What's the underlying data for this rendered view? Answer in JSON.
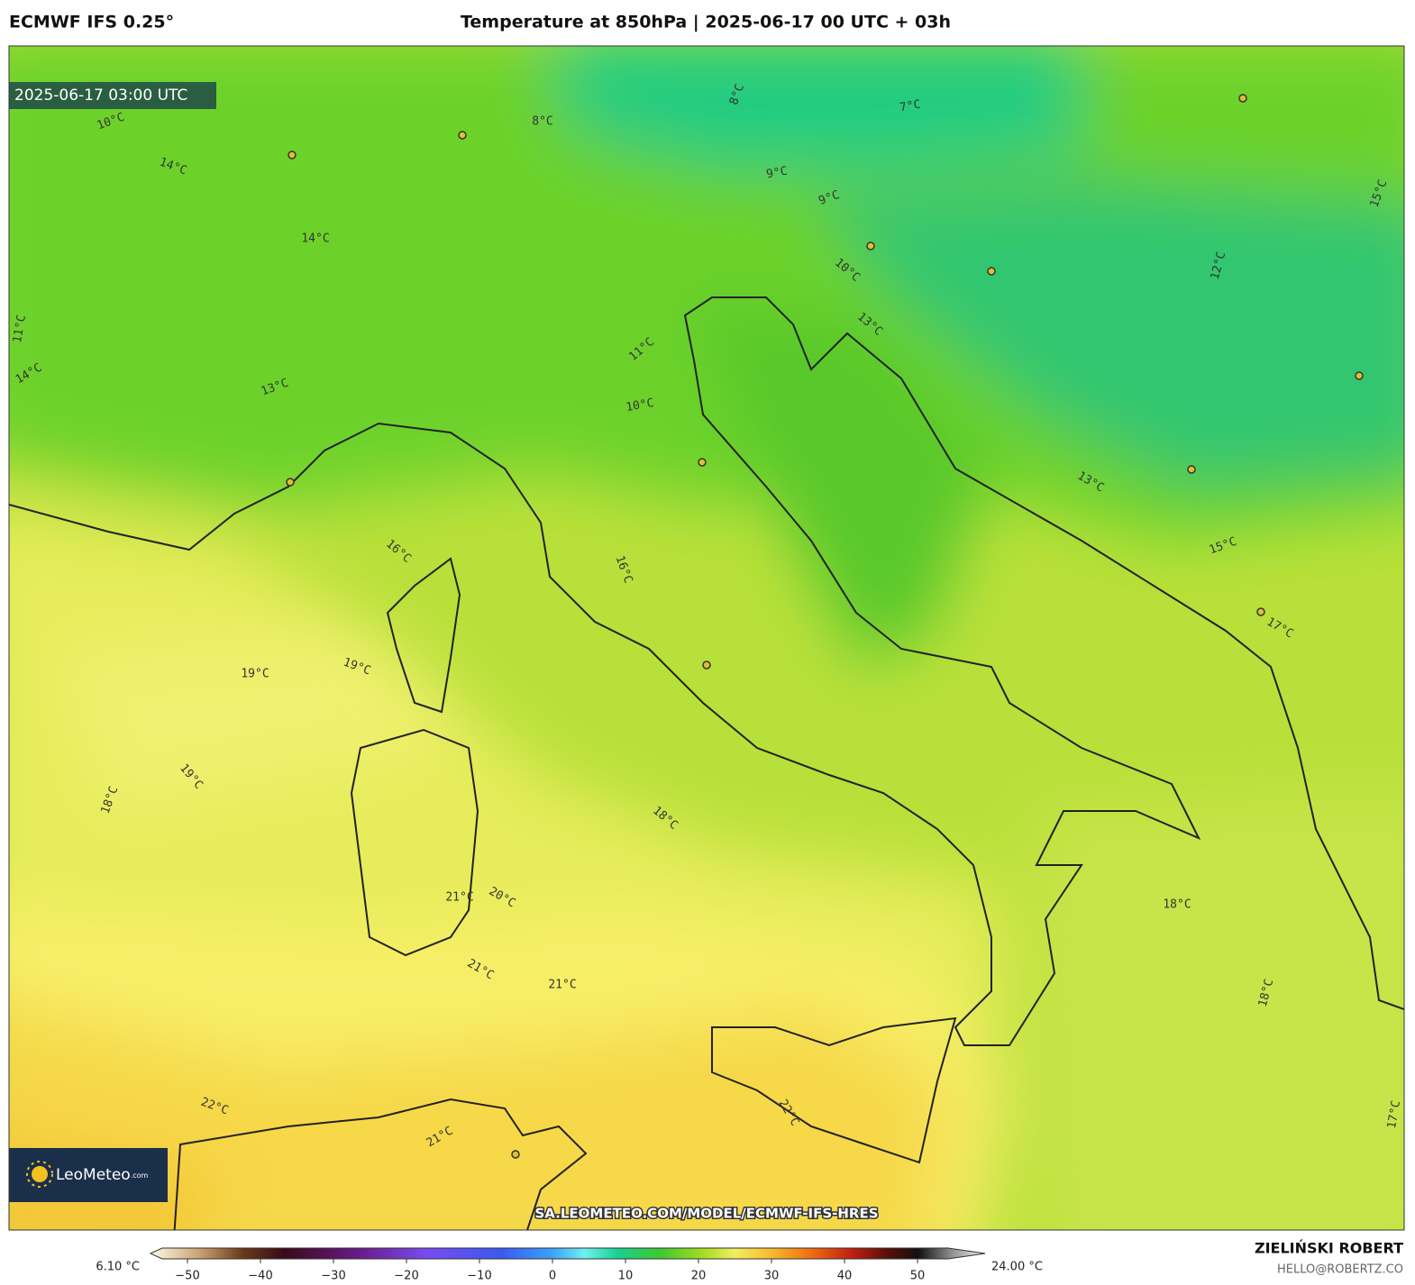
{
  "header": {
    "model": "ECMWF IFS 0.25°",
    "title": "Temperature at 850hPa | 2025-06-17 00 UTC + 03h"
  },
  "map": {
    "valid_time": "2025-06-17 03:00 UTC",
    "contour_labels": [
      "10°C",
      "14°C",
      "8°C",
      "8°C",
      "7°C",
      "9°C",
      "9°C",
      "14°C",
      "10°C",
      "13°C",
      "11°C",
      "10°C",
      "14°C",
      "11°C",
      "16°C",
      "16°C",
      "19°C",
      "19°C",
      "19°C",
      "18°C",
      "18°C",
      "21°C",
      "20°C",
      "21°C",
      "21°C",
      "22°C",
      "21°C",
      "22°C",
      "18°C",
      "18°C",
      "17°C",
      "13°C",
      "15°C",
      "17°C",
      "12°C",
      "15°C",
      "13°C"
    ],
    "logo": {
      "brand": "LeoMeteo",
      "suffix": ".com"
    },
    "source_url": "SA.LEOMETEO.COM/MODEL/ECMWF-IFS-HRES"
  },
  "colorbar": {
    "min_label": "6.10 °C",
    "max_label": "24.00 °C",
    "xlim": [
      -55,
      55
    ],
    "ticks": [
      {
        "value": -50,
        "label": "−50"
      },
      {
        "value": -40,
        "label": "−40"
      },
      {
        "value": -30,
        "label": "−30"
      },
      {
        "value": -20,
        "label": "−20"
      },
      {
        "value": -10,
        "label": "−10"
      },
      0,
      10,
      20,
      30,
      40,
      50
    ]
  },
  "credits": {
    "author": "ZIELIŃSKI ROBERT",
    "email": "HELLO@ROBERTZ.CO"
  }
}
